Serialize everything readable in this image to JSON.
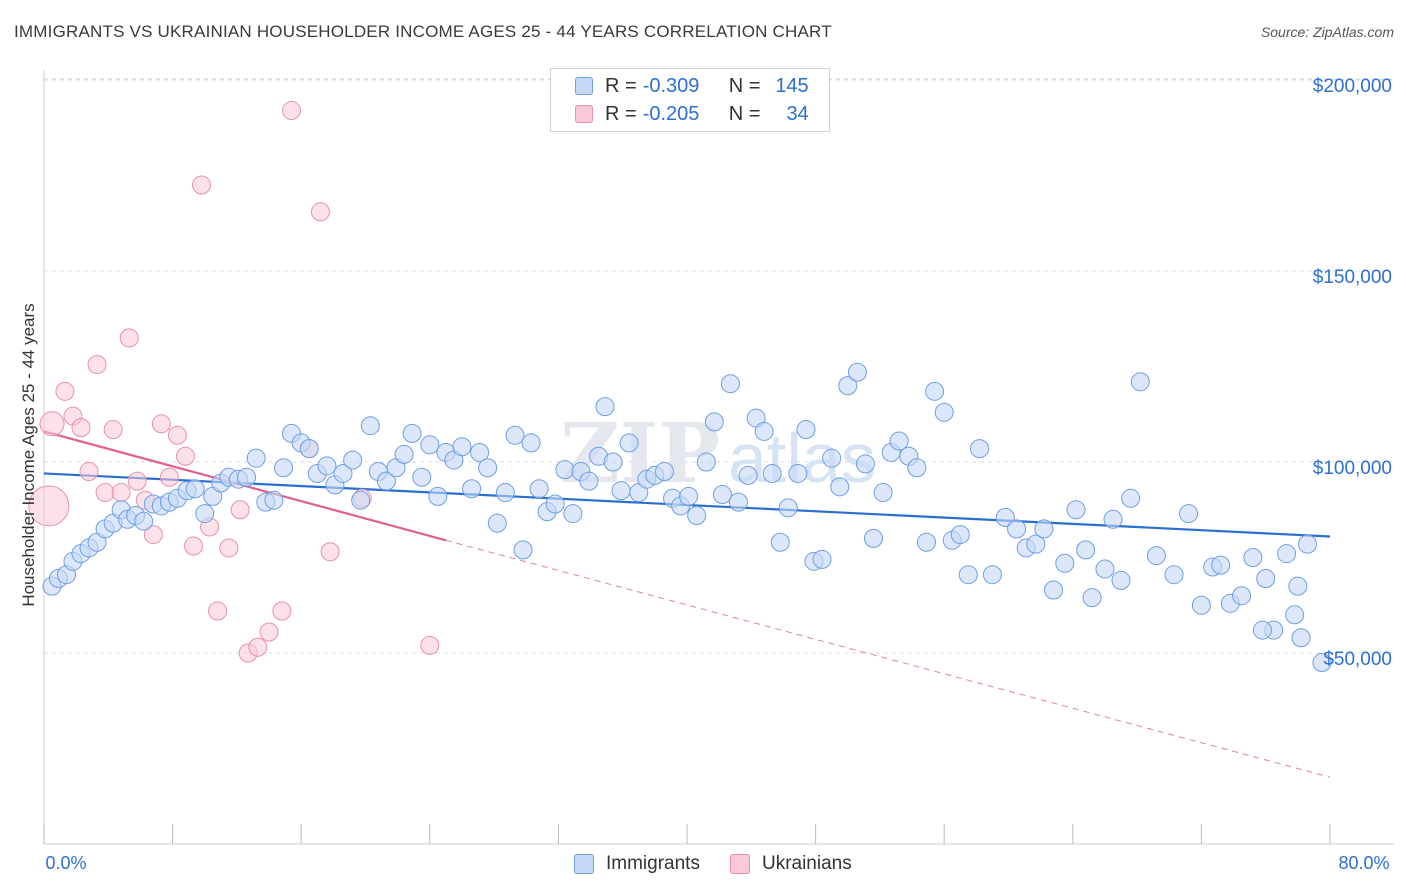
{
  "title": "IMMIGRANTS VS UKRAINIAN HOUSEHOLDER INCOME AGES 25 - 44 YEARS CORRELATION CHART",
  "source": "Source: ZipAtlas.com",
  "legend": {
    "rows": [
      {
        "r_label": "R =",
        "r_value": "-0.309",
        "n_label": "N =",
        "n_value": "145"
      },
      {
        "r_label": "R =",
        "r_value": "-0.205",
        "n_label": "N =",
        "n_value": "34"
      }
    ]
  },
  "bottom_legend": {
    "immigrants": "Immigrants",
    "ukrainians": "Ukrainians"
  },
  "colors": {
    "immigrants_fill": "#c5d8f5",
    "immigrants_stroke": "#6f9ee6",
    "immigrants_line": "#2a6fd0",
    "ukrainians_fill": "#f9c9d7",
    "ukrainians_stroke": "#e890ad",
    "ukrainians_line": "#e0608c",
    "axis_text": "#2d6fd2",
    "grid": "#dddddd"
  },
  "chart_data": {
    "type": "scatter",
    "title": "IMMIGRANTS VS UKRAINIAN HOUSEHOLDER INCOME AGES 25 - 44 YEARS CORRELATION CHART",
    "xlabel": "",
    "ylabel": "Householder Income Ages 25 - 44 years",
    "xlim": [
      0,
      80
    ],
    "ylim": [
      0,
      210000
    ],
    "x_tick_labels": [
      "0.0%",
      "80.0%"
    ],
    "y_ticks": [
      50000,
      100000,
      150000,
      200000
    ],
    "y_tick_labels": [
      "$50,000",
      "$100,000",
      "$150,000",
      "$200,000"
    ],
    "grid": true,
    "legend_position": "top-center",
    "watermark": "ZIPatlas",
    "series": [
      {
        "name": "Immigrants",
        "trend": {
          "x": [
            0,
            80
          ],
          "y": [
            97000,
            80500
          ]
        },
        "points": [
          [
            0.5,
            67500
          ],
          [
            0.9,
            69500
          ],
          [
            1.4,
            70500
          ],
          [
            1.8,
            74000
          ],
          [
            2.3,
            76000
          ],
          [
            2.8,
            77500
          ],
          [
            3.3,
            79000
          ],
          [
            3.8,
            82500
          ],
          [
            4.3,
            84000
          ],
          [
            4.8,
            87500
          ],
          [
            5.2,
            85000
          ],
          [
            5.7,
            86000
          ],
          [
            6.2,
            84500
          ],
          [
            6.8,
            89000
          ],
          [
            7.3,
            88500
          ],
          [
            7.8,
            89500
          ],
          [
            8.3,
            90500
          ],
          [
            8.9,
            92500
          ],
          [
            9.4,
            93000
          ],
          [
            10.0,
            86500
          ],
          [
            10.5,
            91000
          ],
          [
            11.0,
            94500
          ],
          [
            11.5,
            96000
          ],
          [
            12.1,
            95500
          ],
          [
            12.6,
            96000
          ],
          [
            13.2,
            101000
          ],
          [
            13.8,
            89500
          ],
          [
            14.3,
            90000
          ],
          [
            14.9,
            98500
          ],
          [
            15.4,
            107500
          ],
          [
            16.0,
            105000
          ],
          [
            16.5,
            103500
          ],
          [
            17.0,
            97000
          ],
          [
            17.6,
            99000
          ],
          [
            18.1,
            94000
          ],
          [
            18.6,
            97000
          ],
          [
            19.2,
            100500
          ],
          [
            19.7,
            90000
          ],
          [
            20.3,
            109500
          ],
          [
            20.8,
            97500
          ],
          [
            21.3,
            95000
          ],
          [
            21.9,
            98500
          ],
          [
            22.4,
            102000
          ],
          [
            22.9,
            107500
          ],
          [
            23.5,
            96000
          ],
          [
            24.0,
            104500
          ],
          [
            24.5,
            91000
          ],
          [
            25.0,
            102500
          ],
          [
            25.5,
            100500
          ],
          [
            26.0,
            104000
          ],
          [
            26.6,
            93000
          ],
          [
            27.1,
            102500
          ],
          [
            27.6,
            98500
          ],
          [
            28.2,
            84000
          ],
          [
            28.7,
            92000
          ],
          [
            29.3,
            107000
          ],
          [
            29.8,
            77000
          ],
          [
            30.3,
            105000
          ],
          [
            30.8,
            93000
          ],
          [
            31.3,
            87000
          ],
          [
            31.8,
            89000
          ],
          [
            32.4,
            98000
          ],
          [
            32.9,
            86500
          ],
          [
            33.4,
            97500
          ],
          [
            33.9,
            95000
          ],
          [
            34.5,
            101500
          ],
          [
            34.9,
            114500
          ],
          [
            35.4,
            100000
          ],
          [
            35.9,
            92500
          ],
          [
            36.4,
            105000
          ],
          [
            37.0,
            92000
          ],
          [
            37.5,
            95500
          ],
          [
            38.0,
            96500
          ],
          [
            38.6,
            97500
          ],
          [
            39.1,
            90500
          ],
          [
            39.6,
            88500
          ],
          [
            40.1,
            91000
          ],
          [
            40.6,
            86000
          ],
          [
            41.2,
            100000
          ],
          [
            41.7,
            110500
          ],
          [
            42.2,
            91500
          ],
          [
            42.7,
            120500
          ],
          [
            43.2,
            89500
          ],
          [
            43.8,
            96500
          ],
          [
            44.3,
            111500
          ],
          [
            44.8,
            108000
          ],
          [
            45.3,
            97000
          ],
          [
            45.8,
            79000
          ],
          [
            46.3,
            88000
          ],
          [
            46.9,
            97000
          ],
          [
            47.4,
            108500
          ],
          [
            47.9,
            74000
          ],
          [
            48.4,
            74500
          ],
          [
            49.0,
            101000
          ],
          [
            49.5,
            93500
          ],
          [
            50.0,
            120000
          ],
          [
            50.6,
            123500
          ],
          [
            51.1,
            99500
          ],
          [
            51.6,
            80000
          ],
          [
            52.2,
            92000
          ],
          [
            52.7,
            102500
          ],
          [
            53.2,
            105500
          ],
          [
            53.8,
            101500
          ],
          [
            54.3,
            98500
          ],
          [
            54.9,
            79000
          ],
          [
            55.4,
            118500
          ],
          [
            56.0,
            113000
          ],
          [
            56.5,
            79500
          ],
          [
            57.0,
            81000
          ],
          [
            57.5,
            70500
          ],
          [
            58.2,
            103500
          ],
          [
            59.0,
            70500
          ],
          [
            59.8,
            85500
          ],
          [
            60.5,
            82500
          ],
          [
            61.1,
            77500
          ],
          [
            61.7,
            78500
          ],
          [
            62.2,
            82500
          ],
          [
            62.8,
            66500
          ],
          [
            63.5,
            73500
          ],
          [
            64.2,
            87500
          ],
          [
            64.8,
            77000
          ],
          [
            65.2,
            64500
          ],
          [
            66.0,
            72000
          ],
          [
            66.5,
            85000
          ],
          [
            67.0,
            69000
          ],
          [
            67.6,
            90500
          ],
          [
            68.2,
            121000
          ],
          [
            69.2,
            75500
          ],
          [
            70.3,
            70500
          ],
          [
            71.2,
            86500
          ],
          [
            72.0,
            62500
          ],
          [
            72.7,
            72500
          ],
          [
            73.8,
            63000
          ],
          [
            74.5,
            65000
          ],
          [
            75.2,
            75000
          ],
          [
            76.0,
            69500
          ],
          [
            76.5,
            56000
          ],
          [
            77.3,
            76000
          ],
          [
            77.8,
            60000
          ],
          [
            78.0,
            67500
          ],
          [
            78.6,
            78500
          ],
          [
            79.5,
            47500
          ],
          [
            78.2,
            54000
          ],
          [
            73.2,
            73000
          ],
          [
            75.8,
            56000
          ]
        ]
      },
      {
        "name": "Ukrainians",
        "trend": {
          "x": [
            0,
            25
          ],
          "y": [
            108000,
            79500
          ]
        },
        "trend_extended": {
          "x": [
            25,
            80
          ],
          "y": [
            79500,
            17500
          ]
        },
        "points": [
          [
            0.3,
            88500
          ],
          [
            0.5,
            110000
          ],
          [
            1.3,
            118500
          ],
          [
            1.8,
            112000
          ],
          [
            2.3,
            109000
          ],
          [
            2.8,
            97500
          ],
          [
            3.3,
            125500
          ],
          [
            3.8,
            92000
          ],
          [
            4.3,
            108500
          ],
          [
            4.8,
            92000
          ],
          [
            5.3,
            132500
          ],
          [
            5.8,
            95000
          ],
          [
            6.3,
            90000
          ],
          [
            6.8,
            81000
          ],
          [
            7.3,
            110000
          ],
          [
            7.8,
            96000
          ],
          [
            8.3,
            107000
          ],
          [
            8.8,
            101500
          ],
          [
            9.3,
            78000
          ],
          [
            9.8,
            172500
          ],
          [
            10.3,
            83000
          ],
          [
            10.8,
            61000
          ],
          [
            11.5,
            77500
          ],
          [
            12.2,
            87500
          ],
          [
            12.7,
            50000
          ],
          [
            13.3,
            51500
          ],
          [
            14.0,
            55500
          ],
          [
            14.8,
            61000
          ],
          [
            15.4,
            192000
          ],
          [
            16.5,
            103500
          ],
          [
            17.2,
            165500
          ],
          [
            17.8,
            76500
          ],
          [
            19.8,
            90500
          ],
          [
            24.0,
            52000
          ]
        ]
      }
    ]
  }
}
